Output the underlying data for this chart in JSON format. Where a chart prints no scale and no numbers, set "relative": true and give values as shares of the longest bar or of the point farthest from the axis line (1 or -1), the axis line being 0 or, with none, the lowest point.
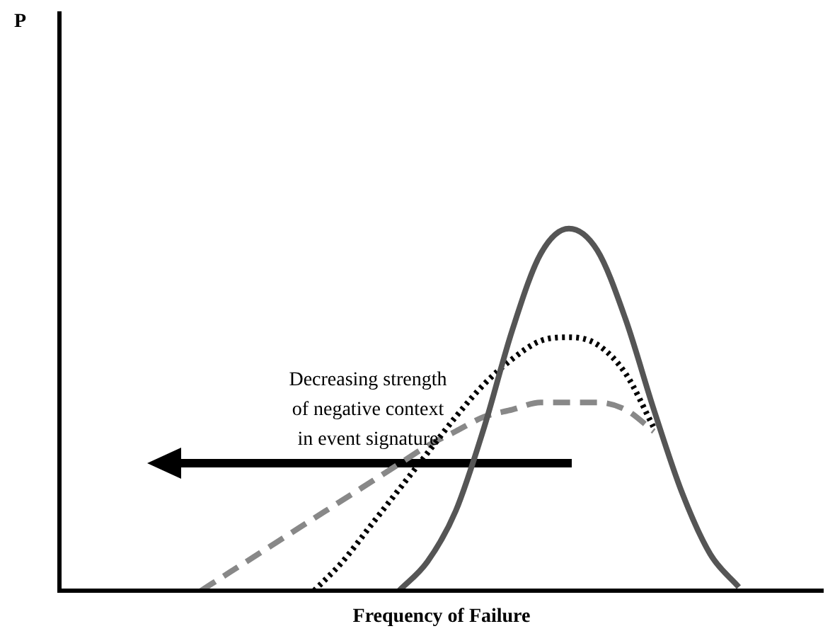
{
  "chart_data": {
    "type": "line",
    "relative": true,
    "xlabel": "Frequency of Failure",
    "legend": false,
    "marker": "none",
    "annotations": [
      "P",
      "Decreasing strength\nof negative context\nin event signature"
    ],
    "categories": [
      null,
      null,
      null,
      null,
      null,
      null,
      null,
      null,
      null,
      null,
      null,
      null,
      null,
      null,
      null,
      null,
      null,
      null,
      null,
      null,
      null,
      null,
      null,
      null,
      null,
      null,
      null,
      null
    ],
    "series": [
      {
        "color": "#555555",
        "line_style": "solid",
        "values": [
          null,
          null,
          null,
          null,
          null,
          null,
          null,
          null,
          null,
          null,
          null,
          null,
          0,
          0.08,
          0.22,
          0.45,
          0.72,
          0.93,
          1,
          0.94,
          0.75,
          0.5,
          0.27,
          0.1,
          0.01,
          null,
          null,
          null
        ]
      },
      {
        "color": "#000000",
        "line_style": "dotted",
        "values": [
          null,
          null,
          null,
          null,
          null,
          null,
          null,
          null,
          null,
          0,
          0.08,
          0.18,
          0.28,
          0.38,
          0.48,
          0.57,
          0.64,
          0.69,
          0.7,
          0.68,
          0.6,
          0.45,
          null,
          null,
          null,
          null,
          null,
          null
        ]
      },
      {
        "color": "#888888",
        "line_style": "dashed",
        "values": [
          null,
          null,
          null,
          null,
          null,
          0,
          0.05,
          0.1,
          0.15,
          0.2,
          0.25,
          0.3,
          0.35,
          0.4,
          0.44,
          0.48,
          0.5,
          0.52,
          0.52,
          0.52,
          0.5,
          0.44,
          null,
          null,
          null,
          null,
          null,
          null
        ]
      }
    ]
  }
}
